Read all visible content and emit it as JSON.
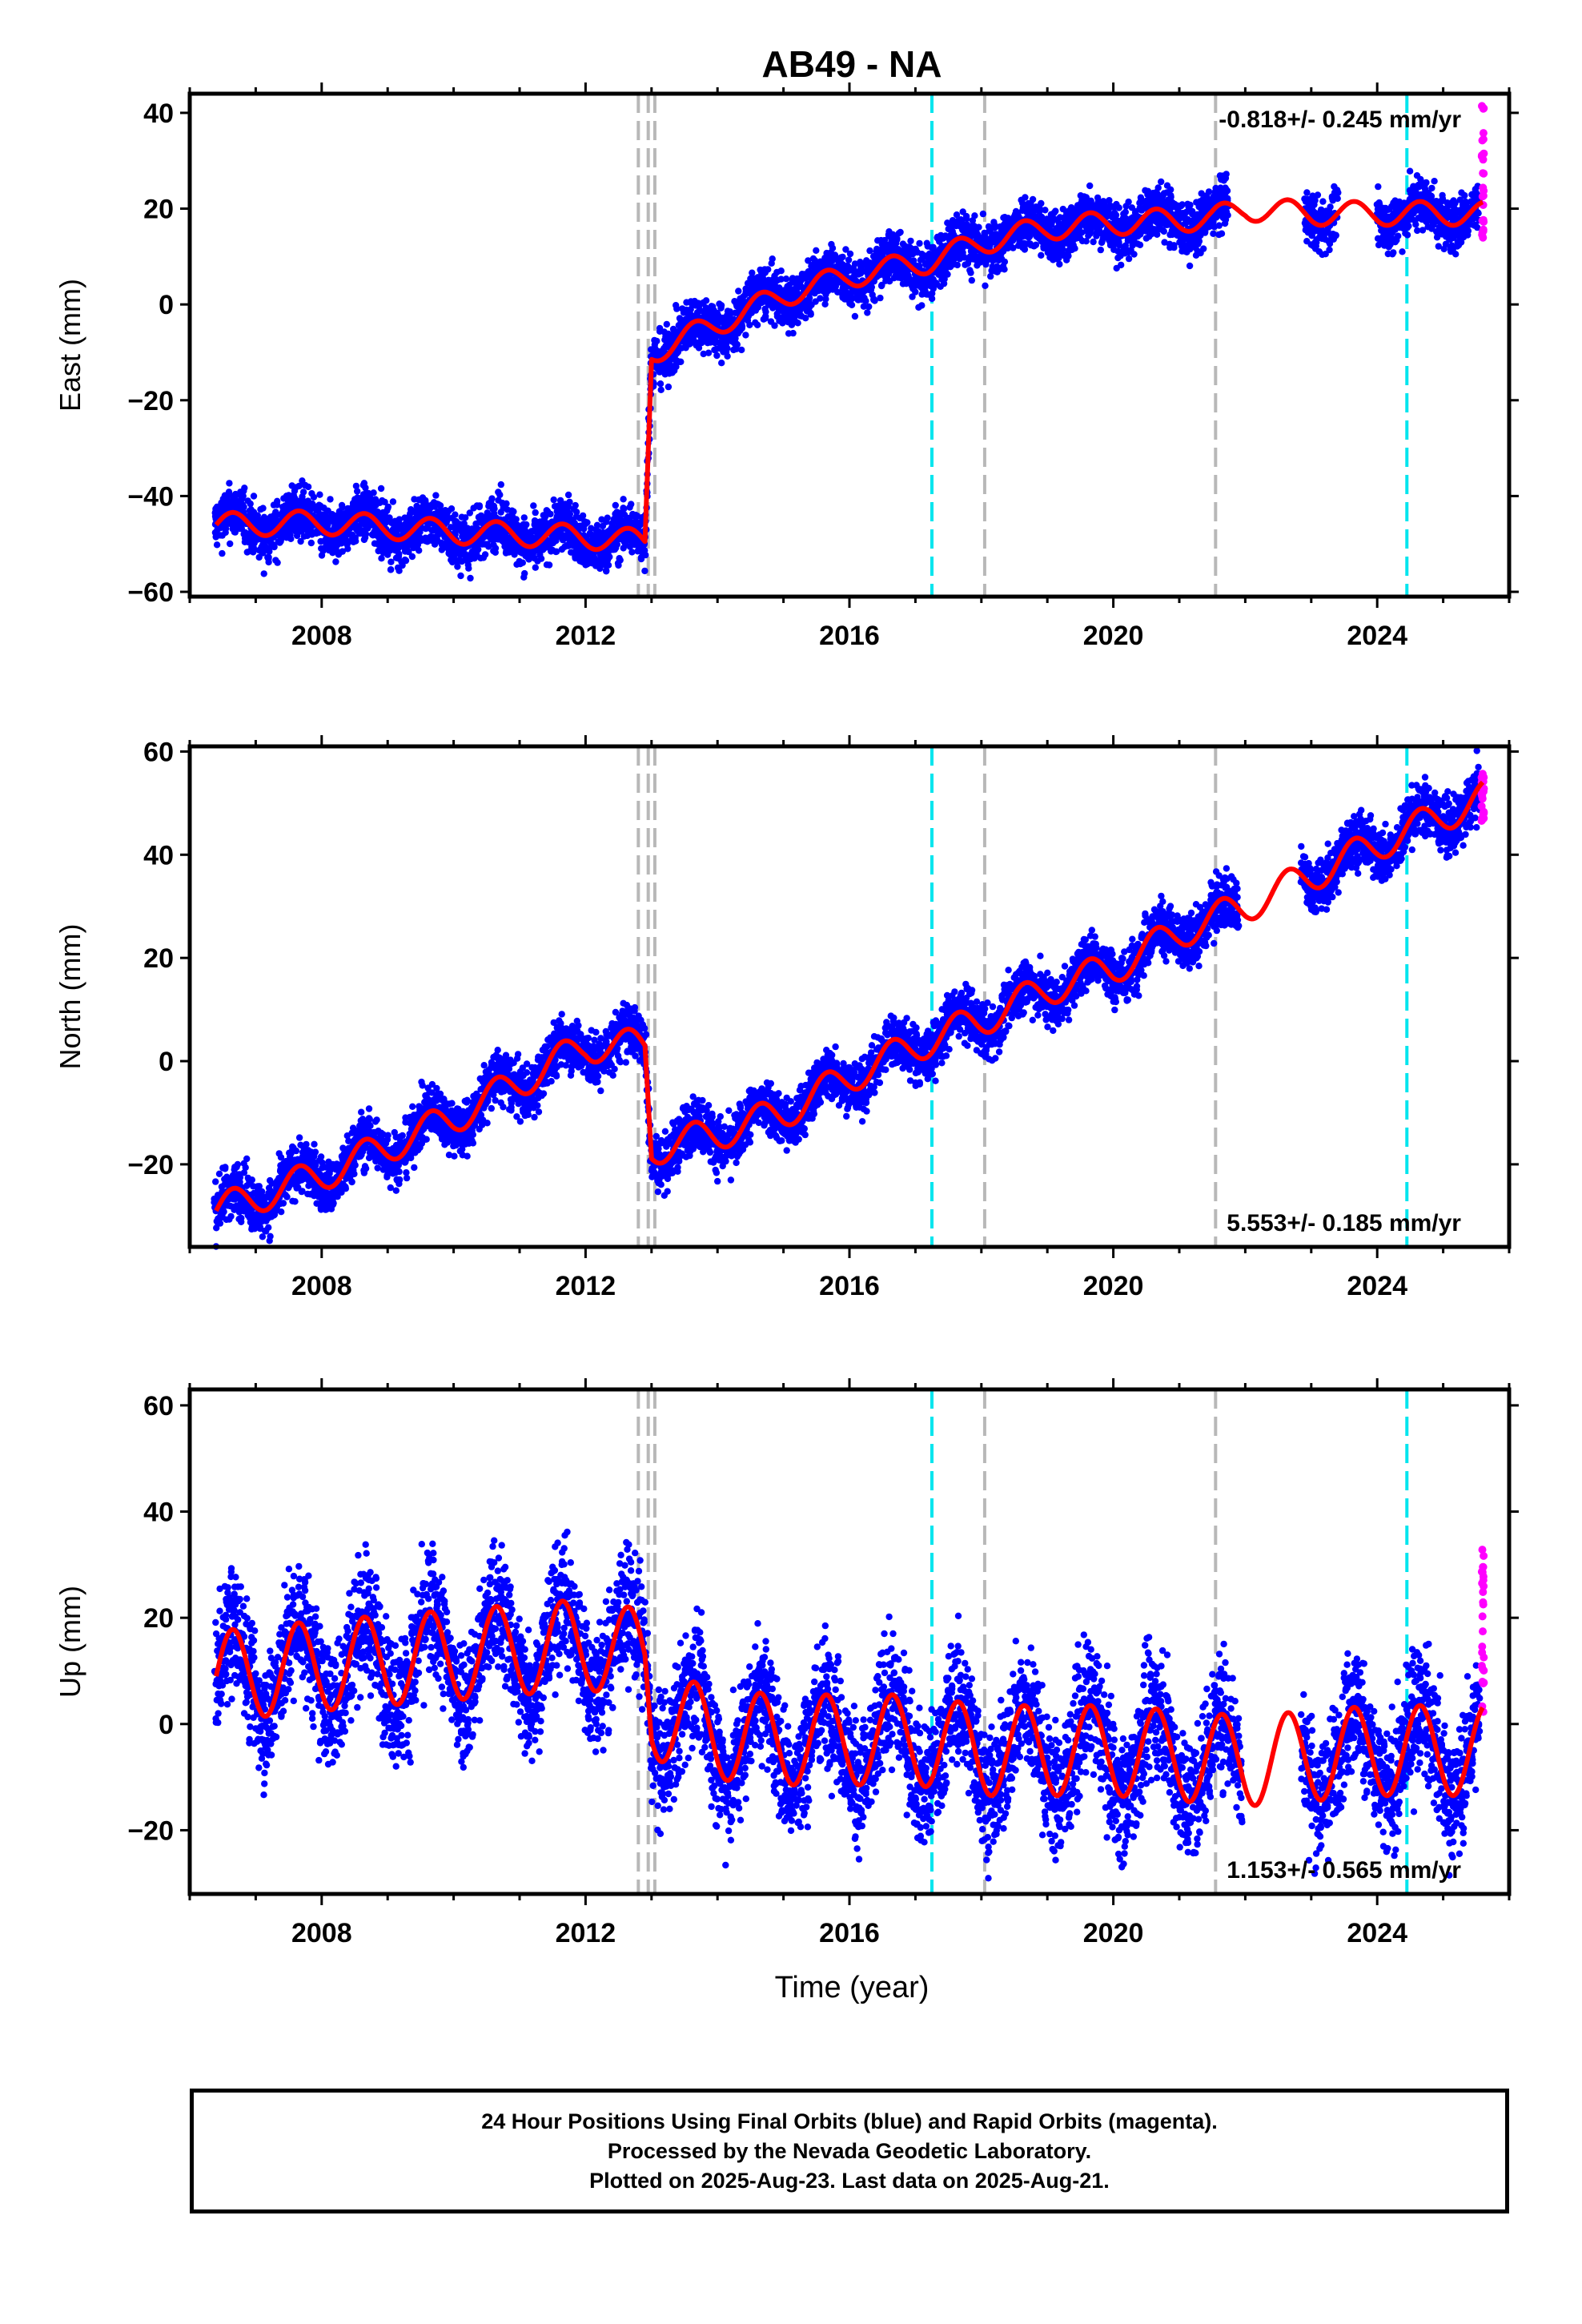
{
  "chart_data": {
    "type": "scatter",
    "title": "AB49 - NA",
    "x_label": "Time (year)",
    "x_range": [
      2006.0,
      2026.0
    ],
    "x_ticks": [
      2008,
      2012,
      2016,
      2020,
      2024
    ],
    "markers_gray": [
      2012.8,
      2012.95,
      2013.05,
      2018.05,
      2021.55
    ],
    "markers_cyan": [
      2017.25,
      2024.45
    ],
    "colors": {
      "final_orbits": "#0000ff",
      "rapid_orbits": "#ff00ff",
      "model": "#ff0000",
      "marker_gray": "#b8b8b8",
      "marker_cyan": "#00e5ee"
    },
    "panels": [
      {
        "name": "East",
        "ylabel": "East (mm)",
        "ylim": [
          -61,
          44
        ],
        "y_ticks": [
          -60,
          -40,
          -20,
          0,
          20,
          40
        ],
        "rate_text": "-0.818+/- 0.245 mm/yr",
        "rate_position": "top-right",
        "model_line": [
          [
            2006.4,
            -46
          ],
          [
            2008.0,
            -45.5
          ],
          [
            2010.0,
            -47.5
          ],
          [
            2012.0,
            -48.5
          ],
          [
            2012.9,
            -49.5
          ],
          [
            2013.0,
            -10
          ],
          [
            2014.0,
            -4
          ],
          [
            2015.0,
            2
          ],
          [
            2016.0,
            6
          ],
          [
            2017.2,
            9
          ],
          [
            2018.0,
            13
          ],
          [
            2019.0,
            16
          ],
          [
            2020.0,
            17
          ],
          [
            2021.5,
            18
          ],
          [
            2022.0,
            20
          ],
          [
            2023.0,
            19
          ],
          [
            2024.0,
            19
          ],
          [
            2025.6,
            19
          ]
        ],
        "model_amp": 2.5,
        "scatter_spread": 2.8,
        "gaps": [
          [
            2021.75,
            2022.9
          ],
          [
            2023.4,
            2024.0
          ]
        ],
        "rapid_y_range": [
          13,
          42
        ]
      },
      {
        "name": "North",
        "ylabel": "North (mm)",
        "ylim": [
          -36,
          61
        ],
        "y_ticks": [
          -20,
          0,
          20,
          40,
          60
        ],
        "rate_text": "5.553+/- 0.185 mm/yr",
        "rate_position": "bottom-right",
        "model_line": [
          [
            2006.4,
            -29
          ],
          [
            2008.0,
            -22
          ],
          [
            2010.0,
            -11
          ],
          [
            2012.0,
            3
          ],
          [
            2012.9,
            3
          ],
          [
            2013.0,
            -17
          ],
          [
            2014.0,
            -14
          ],
          [
            2015.0,
            -10
          ],
          [
            2016.0,
            -3
          ],
          [
            2017.0,
            3
          ],
          [
            2018.0,
            8
          ],
          [
            2019.0,
            14
          ],
          [
            2020.0,
            18
          ],
          [
            2021.0,
            25
          ],
          [
            2022.0,
            30
          ],
          [
            2023.0,
            36
          ],
          [
            2024.0,
            42
          ],
          [
            2025.6,
            51
          ]
        ],
        "model_amp": 3.2,
        "scatter_spread": 2.6,
        "gaps": [
          [
            2021.9,
            2022.85
          ]
        ],
        "rapid_y_range": [
          46,
          56
        ]
      },
      {
        "name": "Up",
        "ylabel": "Up (mm)",
        "ylim": [
          -32,
          63
        ],
        "y_ticks": [
          -20,
          0,
          20,
          40,
          60
        ],
        "rate_text": "1.153+/- 0.565 mm/yr",
        "rate_position": "bottom-right",
        "model_line": [
          [
            2006.4,
            9
          ],
          [
            2008.0,
            11
          ],
          [
            2010.0,
            13
          ],
          [
            2012.0,
            15
          ],
          [
            2012.9,
            13
          ],
          [
            2013.0,
            2
          ],
          [
            2014.0,
            -2
          ],
          [
            2015.0,
            -3
          ],
          [
            2016.0,
            -3
          ],
          [
            2017.0,
            -3
          ],
          [
            2018.0,
            -5
          ],
          [
            2019.0,
            -5
          ],
          [
            2020.0,
            -5
          ],
          [
            2021.0,
            -6
          ],
          [
            2022.0,
            -7
          ],
          [
            2023.0,
            -6
          ],
          [
            2024.0,
            -5
          ],
          [
            2025.6,
            -5
          ]
        ],
        "model_amp": 8.5,
        "scatter_spread": 6,
        "gaps": [
          [
            2021.95,
            2022.85
          ]
        ],
        "rapid_y_range": [
          2,
          33
        ]
      }
    ]
  },
  "caption": {
    "line1": "24 Hour Positions Using Final Orbits (blue) and Rapid Orbits (magenta).",
    "line2": "Processed by the Nevada Geodetic Laboratory.",
    "line3": "Plotted on 2025-Aug-23. Last data on 2025-Aug-21."
  }
}
